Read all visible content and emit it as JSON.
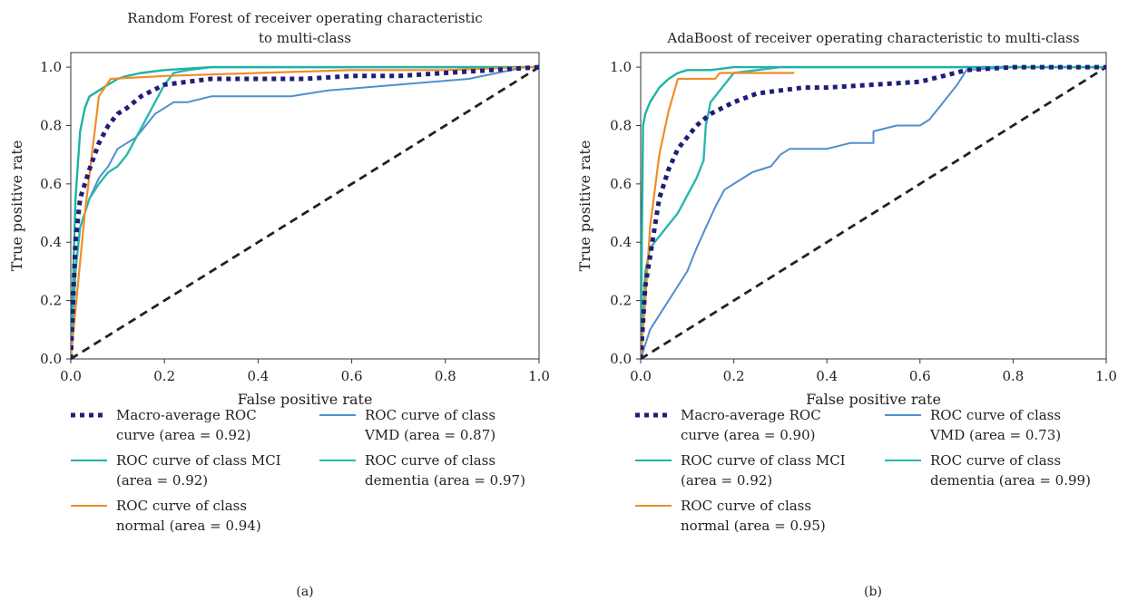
{
  "figure": {
    "panels": [
      {
        "label": "(a)"
      },
      {
        "label": "(b)"
      }
    ]
  },
  "colors": {
    "macro": "#1f1f7a",
    "mci": "#1fb3a3",
    "normal": "#f28c28",
    "vmd": "#4f8fcf",
    "dementia": "#2ab8ad",
    "chance": "#222222"
  },
  "chart_data": [
    {
      "type": "line",
      "title_lines": [
        "Random Forest of receiver operating characteristic",
        "to multi-class"
      ],
      "xlabel": "False positive rate",
      "ylabel": "True positive rate",
      "xlim": [
        0,
        1
      ],
      "ylim": [
        0,
        1.05
      ],
      "xticks": [
        "0.0",
        "0.2",
        "0.4",
        "0.6",
        "0.8",
        "1.0"
      ],
      "yticks": [
        "0.0",
        "0.2",
        "0.4",
        "0.6",
        "0.8",
        "1.0"
      ],
      "grid": false,
      "legend_position": "bottom",
      "legend_items": [
        {
          "key": "macro",
          "lines": [
            "Macro-average ROC",
            "curve (area = 0.92)"
          ],
          "column": 0
        },
        {
          "key": "mci",
          "lines": [
            "ROC curve of class MCI",
            "(area = 0.92)"
          ],
          "column": 0
        },
        {
          "key": "normal",
          "lines": [
            "ROC curve of class",
            "normal (area = 0.94)"
          ],
          "column": 0
        },
        {
          "key": "vmd",
          "lines": [
            "ROC curve of class",
            "VMD (area = 0.87)"
          ],
          "column": 1
        },
        {
          "key": "dementia",
          "lines": [
            "ROC curve of class",
            "dementia (area = 0.97)"
          ],
          "column": 1
        }
      ],
      "series": [
        {
          "key": "chance",
          "style": "dashed",
          "x": [
            0,
            1
          ],
          "y": [
            0,
            1
          ]
        },
        {
          "key": "vmd",
          "style": "solid",
          "x": [
            0,
            0.01,
            0.02,
            0.04,
            0.06,
            0.08,
            0.1,
            0.12,
            0.14,
            0.16,
            0.18,
            0.2,
            0.22,
            0.25,
            0.3,
            0.47,
            0.55,
            0.7,
            0.85,
            0.97,
            1.0
          ],
          "y": [
            0,
            0.3,
            0.45,
            0.55,
            0.62,
            0.66,
            0.72,
            0.74,
            0.76,
            0.8,
            0.84,
            0.86,
            0.88,
            0.88,
            0.9,
            0.9,
            0.92,
            0.94,
            0.96,
            1.0,
            1.0
          ]
        },
        {
          "key": "dementia",
          "style": "solid",
          "x": [
            0,
            0.01,
            0.02,
            0.04,
            0.06,
            0.08,
            0.1,
            0.12,
            0.14,
            0.16,
            0.18,
            0.2,
            0.22,
            0.25,
            0.3,
            0.4,
            0.6,
            0.8,
            1.0
          ],
          "y": [
            0,
            0.3,
            0.45,
            0.55,
            0.6,
            0.64,
            0.66,
            0.7,
            0.76,
            0.82,
            0.88,
            0.94,
            0.98,
            0.99,
            1.0,
            1.0,
            1.0,
            1.0,
            1.0
          ]
        },
        {
          "key": "mci",
          "style": "solid",
          "x": [
            0,
            0.01,
            0.02,
            0.03,
            0.04,
            0.06,
            0.08,
            0.1,
            0.12,
            0.15,
            0.2,
            0.3,
            0.5,
            0.8,
            1.0
          ],
          "y": [
            0,
            0.55,
            0.78,
            0.86,
            0.9,
            0.92,
            0.94,
            0.96,
            0.97,
            0.98,
            0.99,
            1.0,
            1.0,
            1.0,
            1.0
          ]
        },
        {
          "key": "normal",
          "style": "solid",
          "x": [
            0,
            0.03,
            0.06,
            0.085,
            0.2,
            0.4,
            0.6,
            0.8,
            0.98,
            1.0
          ],
          "y": [
            0,
            0.5,
            0.9,
            0.96,
            0.97,
            0.98,
            0.99,
            0.99,
            1.0,
            1.0
          ]
        },
        {
          "key": "macro",
          "style": "dotted",
          "x": [
            0,
            0.01,
            0.02,
            0.04,
            0.06,
            0.08,
            0.1,
            0.12,
            0.15,
            0.2,
            0.25,
            0.3,
            0.4,
            0.5,
            0.6,
            0.7,
            0.8,
            0.9,
            1.0
          ],
          "y": [
            0,
            0.4,
            0.55,
            0.65,
            0.74,
            0.8,
            0.84,
            0.86,
            0.9,
            0.94,
            0.95,
            0.96,
            0.96,
            0.96,
            0.97,
            0.97,
            0.98,
            0.99,
            1.0
          ]
        }
      ]
    },
    {
      "type": "line",
      "title_lines": [
        "AdaBoost of receiver operating characteristic to multi-class"
      ],
      "xlabel": "False positive rate",
      "ylabel": "True positive rate",
      "xlim": [
        0,
        1
      ],
      "ylim": [
        0,
        1.05
      ],
      "xticks": [
        "0.0",
        "0.2",
        "0.4",
        "0.6",
        "0.8",
        "1.0"
      ],
      "yticks": [
        "0.0",
        "0.2",
        "0.4",
        "0.6",
        "0.8",
        "1.0"
      ],
      "grid": false,
      "legend_position": "bottom",
      "legend_items": [
        {
          "key": "macro",
          "lines": [
            "Macro-average ROC",
            "curve (area = 0.90)"
          ],
          "column": 0
        },
        {
          "key": "mci",
          "lines": [
            "ROC curve of class MCI",
            "(area = 0.92)"
          ],
          "column": 0
        },
        {
          "key": "normal",
          "lines": [
            "ROC curve of class",
            "normal (area = 0.95)"
          ],
          "column": 0
        },
        {
          "key": "vmd",
          "lines": [
            "ROC curve of class",
            "VMD (area = 0.73)"
          ],
          "column": 1
        },
        {
          "key": "dementia",
          "lines": [
            "ROC curve of class",
            "dementia (area = 0.99)"
          ],
          "column": 1
        }
      ],
      "series": [
        {
          "key": "chance",
          "style": "dashed",
          "x": [
            0,
            1
          ],
          "y": [
            0,
            1
          ]
        },
        {
          "key": "vmd",
          "style": "solid",
          "x": [
            0,
            0.02,
            0.04,
            0.06,
            0.08,
            0.1,
            0.12,
            0.14,
            0.16,
            0.18,
            0.2,
            0.22,
            0.24,
            0.28,
            0.3,
            0.32,
            0.35,
            0.4,
            0.45,
            0.5,
            0.5,
            0.55,
            0.6,
            0.62,
            0.65,
            0.68,
            0.7,
            0.8,
            1.0
          ],
          "y": [
            0,
            0.1,
            0.15,
            0.2,
            0.25,
            0.3,
            0.38,
            0.45,
            0.52,
            0.58,
            0.6,
            0.62,
            0.64,
            0.66,
            0.7,
            0.72,
            0.72,
            0.72,
            0.74,
            0.74,
            0.78,
            0.8,
            0.8,
            0.82,
            0.88,
            0.94,
            0.99,
            1.0,
            1.0
          ]
        },
        {
          "key": "dementia",
          "style": "solid",
          "x": [
            0,
            0.01,
            0.02,
            0.03,
            0.05,
            0.08,
            0.1,
            0.12,
            0.135,
            0.14,
            0.15,
            0.18,
            0.2,
            0.25,
            0.3,
            0.5,
            1.0
          ],
          "y": [
            0,
            0.3,
            0.38,
            0.4,
            0.44,
            0.5,
            0.56,
            0.62,
            0.68,
            0.8,
            0.88,
            0.94,
            0.98,
            0.99,
            1.0,
            1.0,
            1.0
          ]
        },
        {
          "key": "mci",
          "style": "solid",
          "x": [
            0,
            0.005,
            0.01,
            0.02,
            0.04,
            0.06,
            0.08,
            0.1,
            0.15,
            0.2,
            0.3,
            0.6,
            1.0
          ],
          "y": [
            0,
            0.8,
            0.84,
            0.88,
            0.93,
            0.96,
            0.98,
            0.99,
            0.99,
            1.0,
            1.0,
            1.0,
            1.0
          ]
        },
        {
          "key": "normal",
          "style": "solid",
          "x": [
            0,
            0.01,
            0.02,
            0.04,
            0.06,
            0.08,
            0.1,
            0.16,
            0.17,
            0.33
          ],
          "y": [
            0,
            0.2,
            0.45,
            0.7,
            0.85,
            0.96,
            0.96,
            0.96,
            0.98,
            0.98
          ]
        },
        {
          "key": "macro",
          "style": "dotted",
          "x": [
            0,
            0.01,
            0.02,
            0.04,
            0.06,
            0.08,
            0.1,
            0.12,
            0.15,
            0.2,
            0.25,
            0.3,
            0.35,
            0.4,
            0.5,
            0.6,
            0.65,
            0.7,
            0.8,
            1.0
          ],
          "y": [
            0,
            0.25,
            0.35,
            0.55,
            0.65,
            0.72,
            0.76,
            0.8,
            0.84,
            0.88,
            0.91,
            0.92,
            0.93,
            0.93,
            0.94,
            0.95,
            0.97,
            0.99,
            1.0,
            1.0
          ]
        }
      ]
    }
  ]
}
